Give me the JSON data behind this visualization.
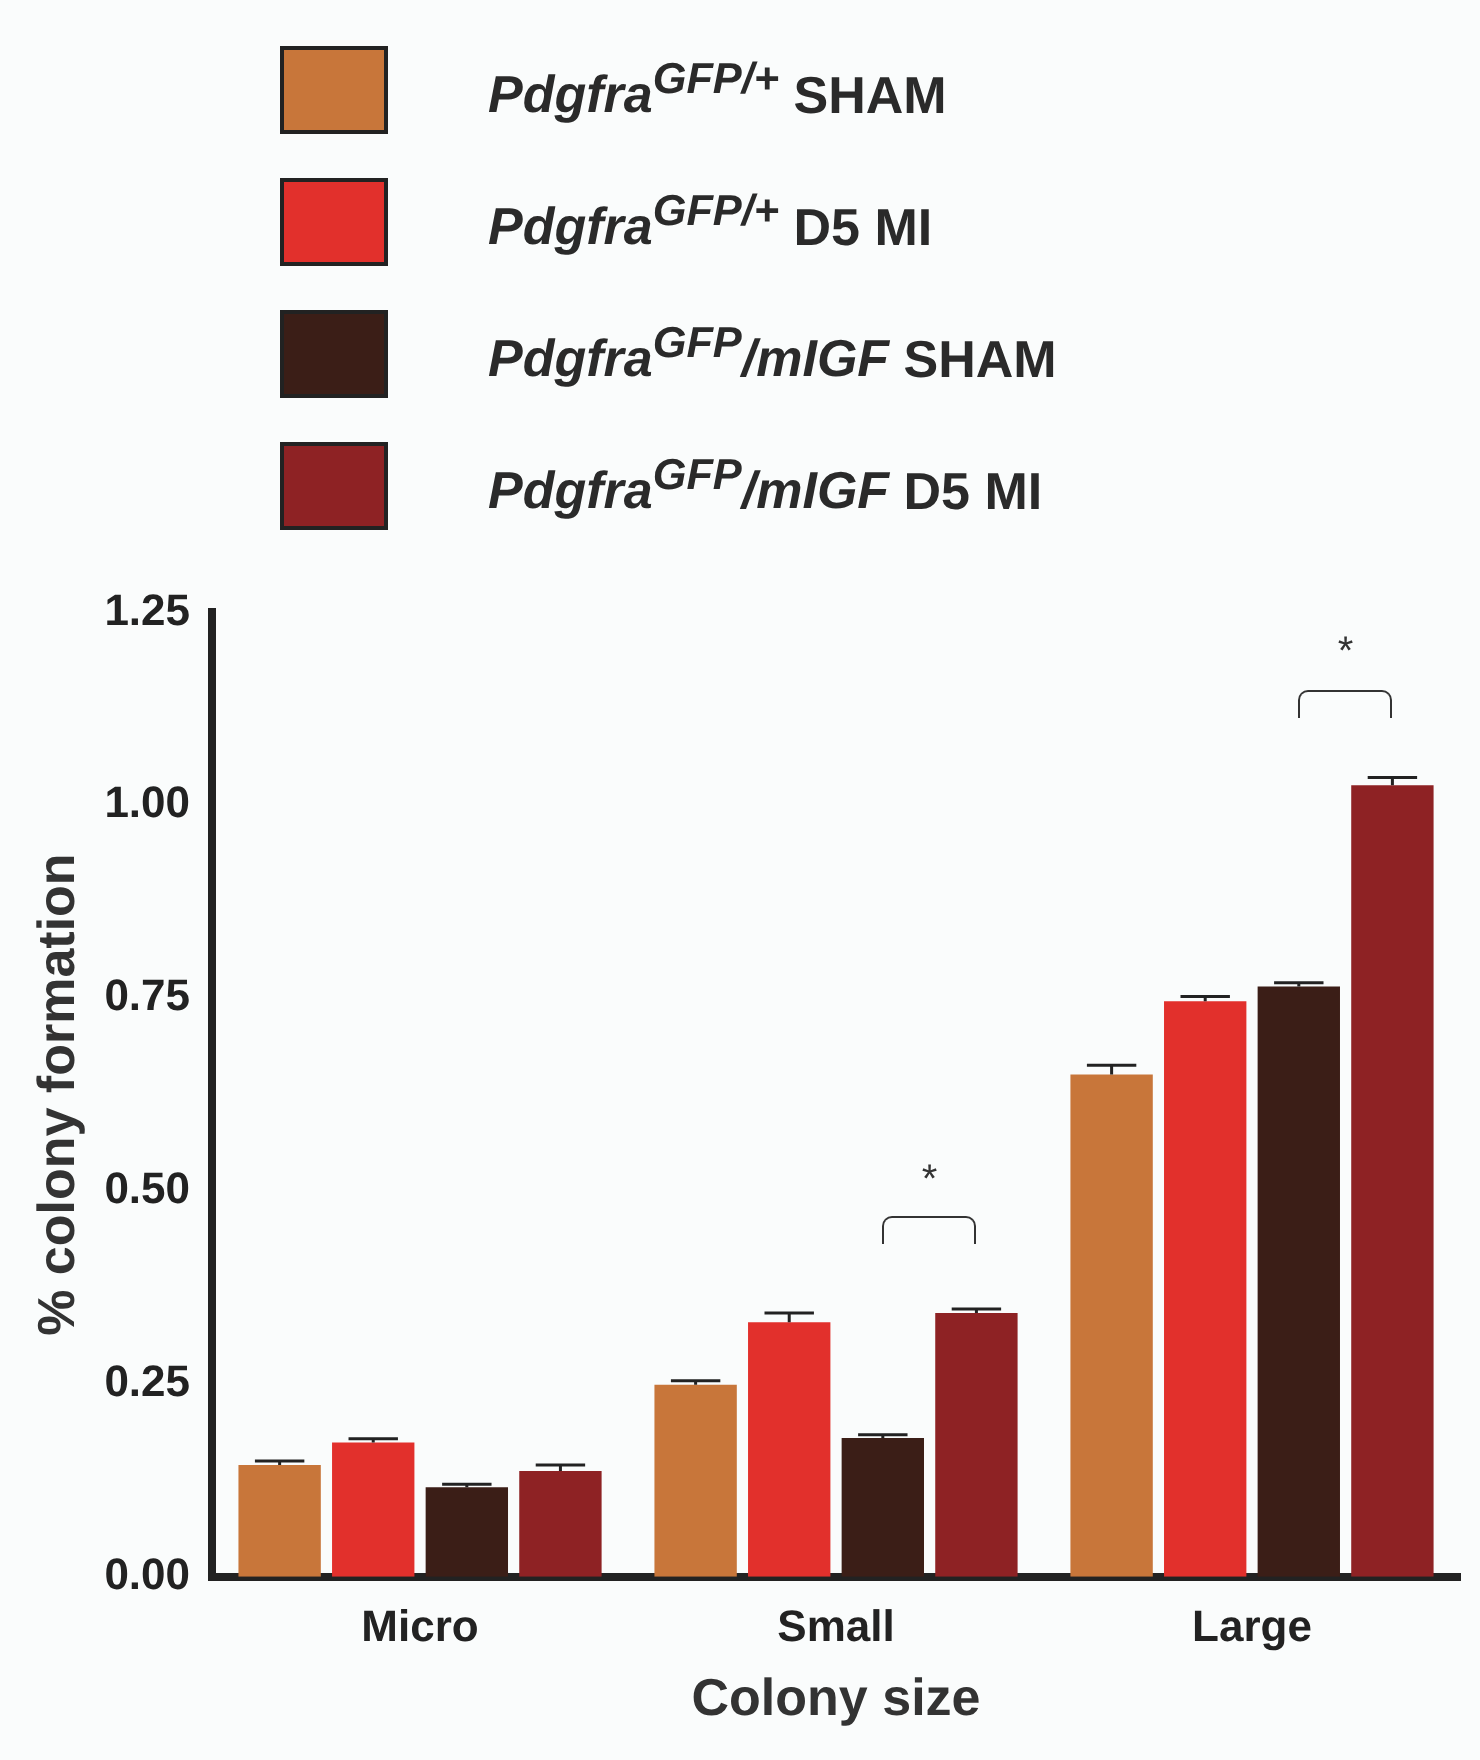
{
  "chart_data": {
    "type": "bar",
    "xlabel": "Colony size",
    "ylabel": "% colony formation",
    "categories": [
      "Micro",
      "Small",
      "Large"
    ],
    "series": [
      {
        "name": "Pdgfra$^{GFP/+}$ SHAM",
        "color": "#c8763a",
        "values": [
          0.145,
          0.249,
          0.651
        ],
        "errors": [
          0.005,
          0.005,
          0.012
        ]
      },
      {
        "name": "Pdgfra$^{GFP/+}$ D5 MI",
        "color": "#e2302c",
        "values": [
          0.174,
          0.33,
          0.746
        ],
        "errors": [
          0.005,
          0.012,
          0.006
        ]
      },
      {
        "name": "Pdgfra$^{GFP}$/mIGF SHAM",
        "color": "#3b1e17",
        "values": [
          0.116,
          0.18,
          0.765
        ],
        "errors": [
          0.004,
          0.004,
          0.005
        ]
      },
      {
        "name": "Pdgfra$^{GFP}$/mIGF D5 MI",
        "color": "#8e2224",
        "values": [
          0.137,
          0.342,
          1.026
        ],
        "errors": [
          0.008,
          0.005,
          0.01
        ]
      }
    ],
    "ylim": [
      0,
      1.25
    ],
    "yticks": [
      {
        "value": 0,
        "label": "0.00"
      },
      0.25,
      {
        "value": 0.5,
        "label": "0.50"
      },
      0.75,
      {
        "value": 1,
        "label": "1.00"
      },
      1.25
    ],
    "annotations": [
      "*",
      "*"
    ],
    "grid": false,
    "legend": "top"
  }
}
